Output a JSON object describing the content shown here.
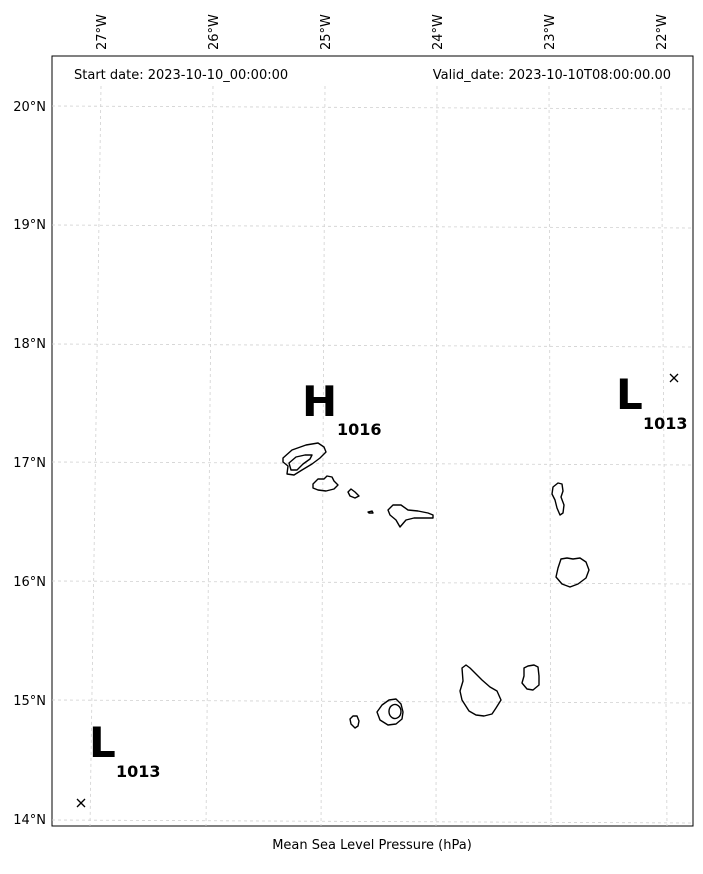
{
  "header": {
    "start_date": "Start date: 2023-10-10_00:00:00",
    "valid_date": "Valid_date: 2023-10-10T08:00:00.00"
  },
  "axes": {
    "lon_labels": [
      "27°W",
      "26°W",
      "25°W",
      "24°W",
      "23°W",
      "22°W"
    ],
    "lat_labels": [
      "20°N",
      "19°N",
      "18°N",
      "17°N",
      "16°N",
      "15°N",
      "14°N"
    ],
    "xlabel": "Mean Sea Level Pressure (hPa)"
  },
  "pressure_centers": [
    {
      "type": "H",
      "value": "1016"
    },
    {
      "type": "L",
      "value": "1013"
    },
    {
      "type": "L",
      "value": "1013"
    }
  ],
  "map_meta": {
    "region": "Cabo Verde",
    "extent_lon": [
      -27.35,
      -21.75
    ],
    "extent_lat": [
      13.95,
      20.4
    ],
    "gridlines": "dashed"
  }
}
